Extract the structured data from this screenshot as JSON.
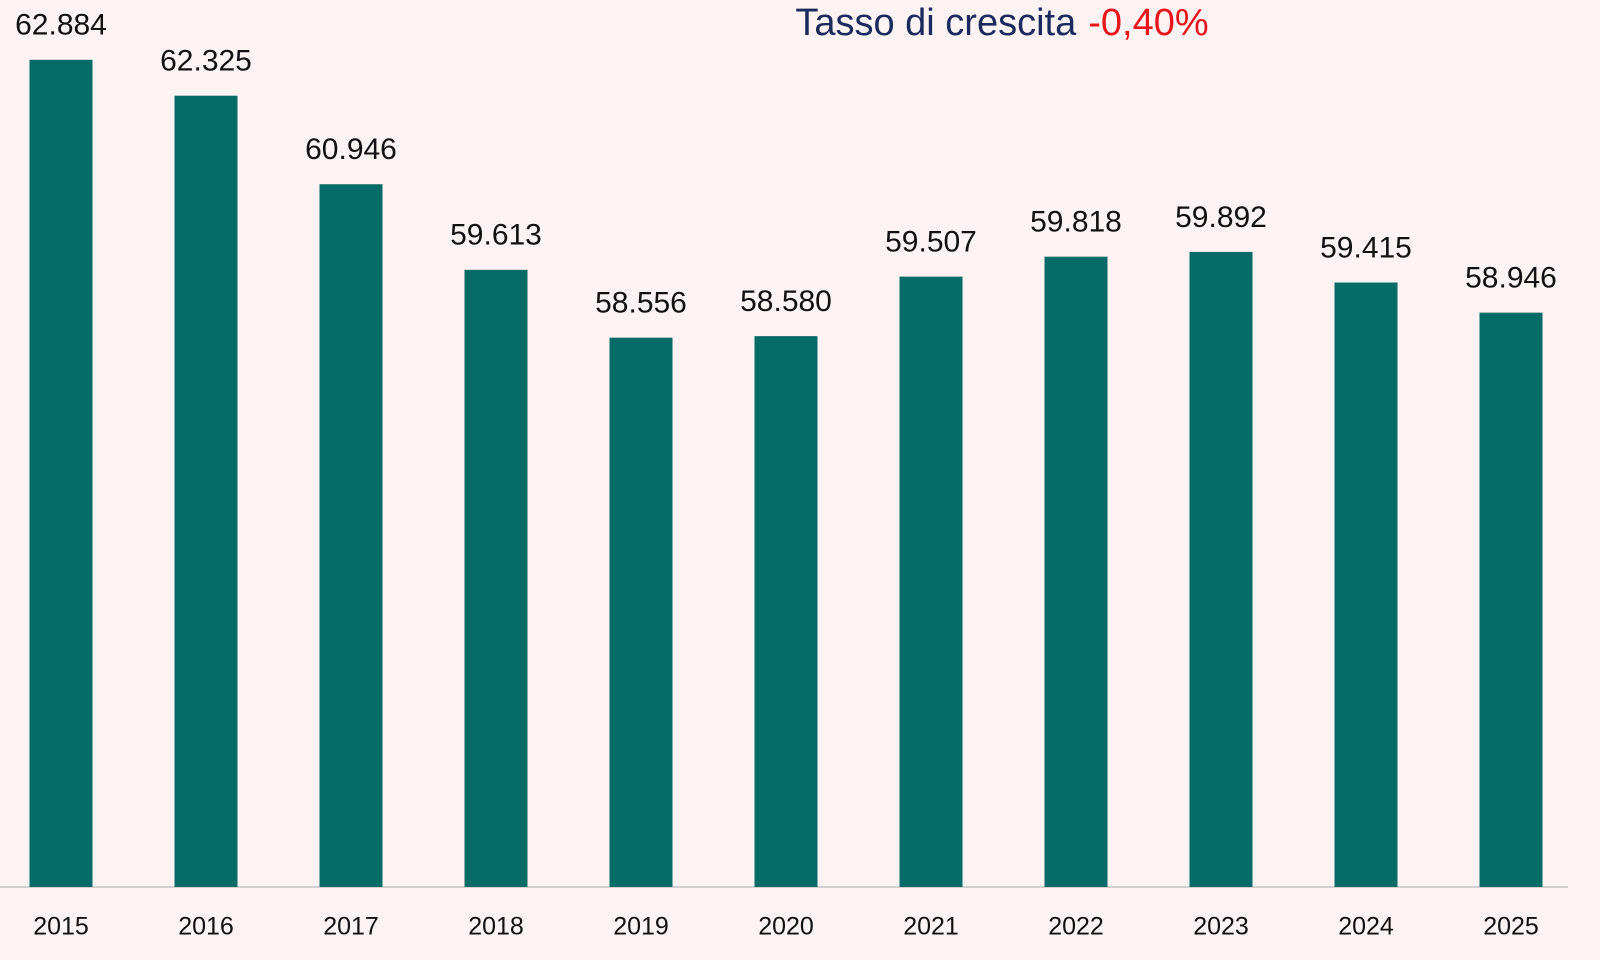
{
  "chart_data": {
    "type": "bar",
    "title": "Tasso di crescita",
    "growth_rate": "-0,40%",
    "categories": [
      "2015",
      "2016",
      "2017",
      "2018",
      "2019",
      "2020",
      "2021",
      "2022",
      "2023",
      "2024",
      "2025"
    ],
    "values": [
      62884,
      62325,
      60946,
      59613,
      58556,
      58580,
      59507,
      59818,
      59892,
      59415,
      58946
    ],
    "value_labels": [
      "62.884",
      "62.325",
      "60.946",
      "59.613",
      "58.556",
      "58.580",
      "59.507",
      "59.818",
      "59.892",
      "59.415",
      "58.946"
    ],
    "color": "#076b68",
    "title_color": "#1a2a5e",
    "growth_rate_color": "#e8141c",
    "ylim": [
      50000,
      63800
    ]
  }
}
